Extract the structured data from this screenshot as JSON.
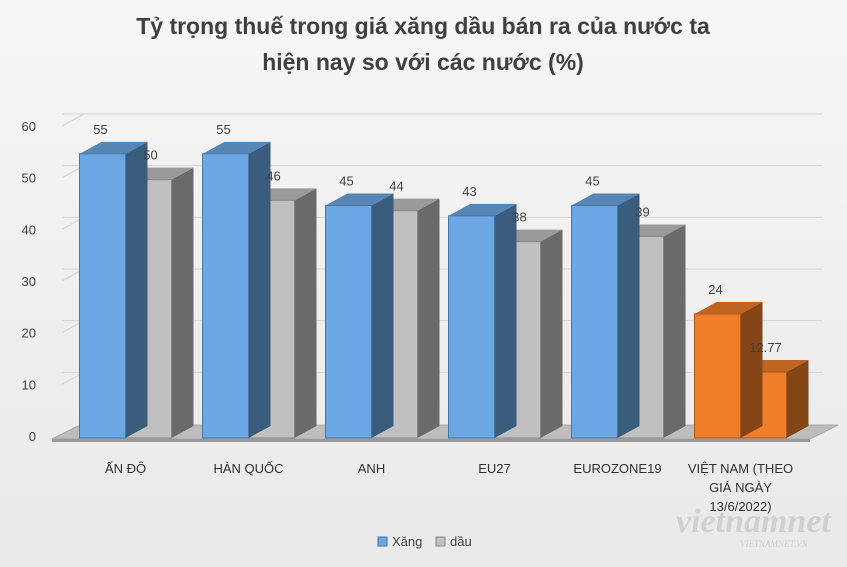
{
  "chart_data": {
    "type": "bar",
    "title": "Tỷ trọng thuế trong giá xăng dầu bán ra của nước ta hiện nay so với các nước (%)",
    "title_lines": [
      "Tỷ trọng thuế trong giá xăng dầu bán ra của nước ta",
      "hiện nay so với các nước (%)"
    ],
    "categories": [
      "ẤN ĐỘ",
      "HÀN QUỐC",
      "ANH",
      "EU27",
      "EUROZONE19",
      "VIỆT NAM (THEO GIÁ NGÀY 13/6/2022)"
    ],
    "category_lines": [
      [
        "ẤN ĐỘ"
      ],
      [
        "HÀN QUỐC"
      ],
      [
        "ANH"
      ],
      [
        "EU27"
      ],
      [
        "EUROZONE19"
      ],
      [
        "VIỆT NAM (THEO",
        "GIÁ NGÀY",
        "13/6/2022)"
      ]
    ],
    "series": [
      {
        "name": "Xăng",
        "values": [
          55,
          55,
          45,
          43,
          45,
          24
        ],
        "labels": [
          "55",
          "55",
          "45",
          "43",
          "45",
          "24"
        ],
        "color": "#6aa7e4"
      },
      {
        "name": "dầu",
        "values": [
          50,
          46,
          44,
          38,
          39,
          12.77
        ],
        "labels": [
          "50",
          "46",
          "44",
          "38",
          "39",
          "12.77"
        ],
        "color": "#c0c0c0"
      }
    ],
    "highlight": {
      "category_index": 5,
      "color": "#f07d2a"
    },
    "ylim": [
      0,
      60
    ],
    "yticks": [
      "0",
      "10",
      "20",
      "30",
      "40",
      "50",
      "60"
    ],
    "grid": true,
    "legend_position": "bottom-center",
    "watermark": {
      "text": "vietnamnet",
      "subtext": "VIETNAMNET.VN"
    }
  }
}
